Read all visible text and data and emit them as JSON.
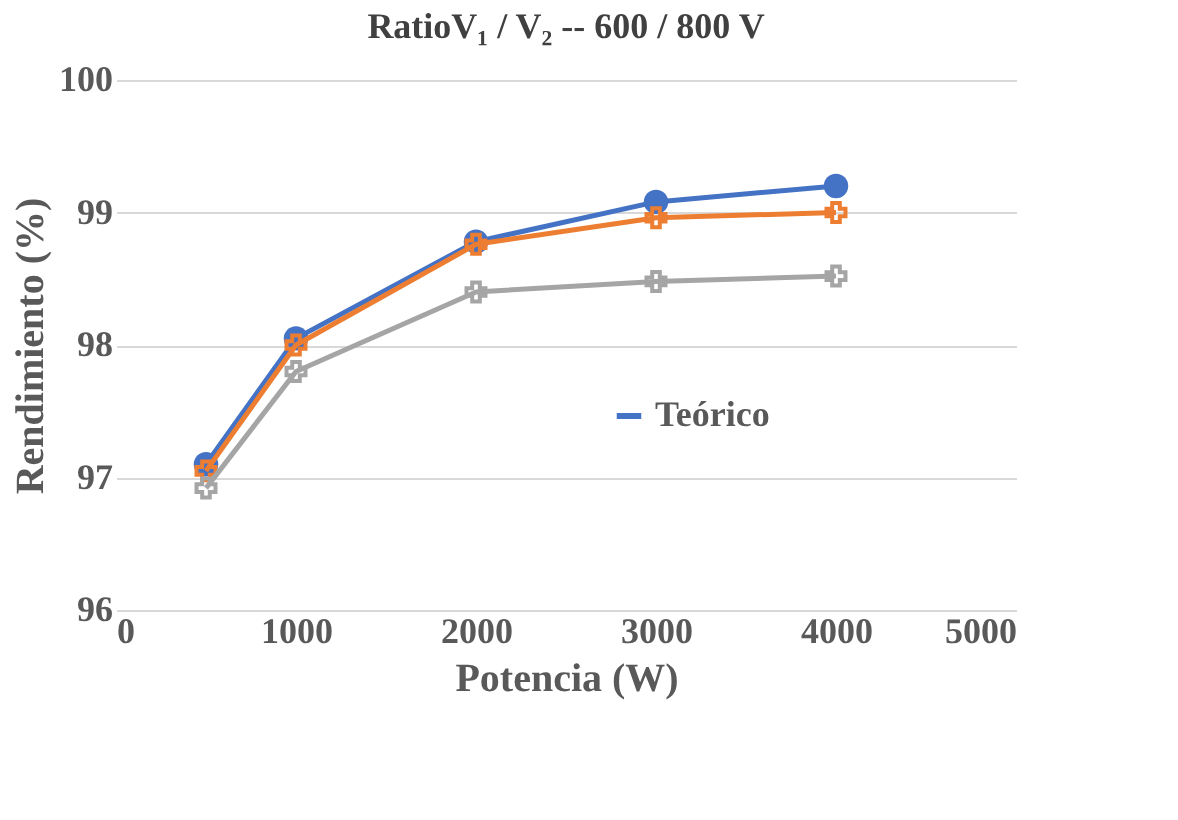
{
  "chart_data": {
    "type": "line",
    "title": "RatioV₁ / V₂ -- 600 / 800 V",
    "xlabel": "Potencia (W)",
    "ylabel": "Rendimiento (%)",
    "x": [
      500,
      1000,
      2000,
      3000,
      4000
    ],
    "series": [
      {
        "name": "Teórico",
        "color": "#4472c4",
        "marker": "circle",
        "values": [
          97.1,
          98.05,
          98.78,
          99.08,
          99.2
        ]
      },
      {
        "color": "#ed7d31",
        "marker": "cross",
        "values": [
          97.05,
          98.0,
          98.76,
          98.96,
          99.0
        ]
      },
      {
        "color": "#a5a5a5",
        "marker": "cross",
        "values": [
          96.92,
          97.8,
          98.4,
          98.48,
          98.52
        ]
      }
    ],
    "xlim": [
      0,
      5000
    ],
    "xticks": [
      0,
      1000,
      2000,
      3000,
      4000,
      5000
    ],
    "ylim": [
      96,
      100
    ],
    "yticks": [
      96,
      97,
      98,
      99,
      100
    ],
    "grid": "y",
    "legend": "bottom right",
    "line_style": "solid"
  }
}
